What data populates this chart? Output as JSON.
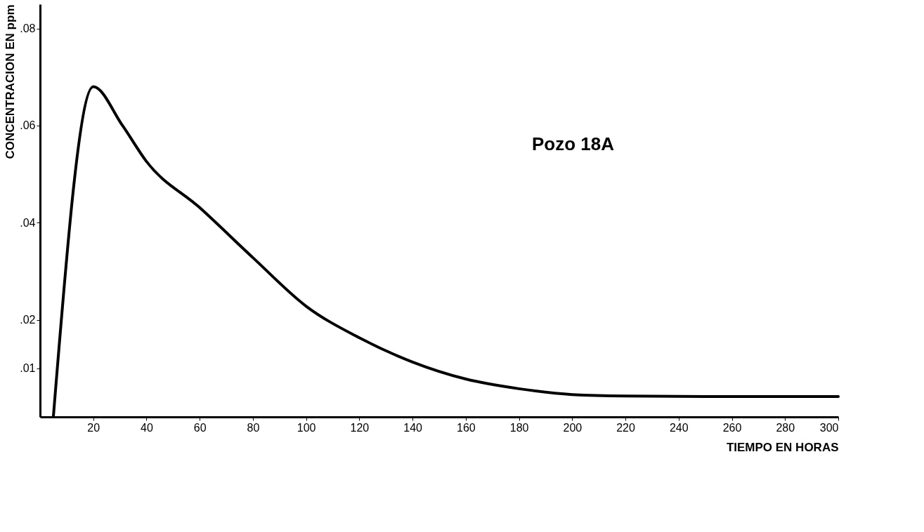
{
  "chart_data": {
    "type": "line",
    "xlabel": "TIEMPO EN HORAS",
    "ylabel": "CONCENTRACION EN ppm",
    "annotations": [
      "Pozo 18A"
    ],
    "x": [
      5,
      20,
      31,
      40,
      60,
      80,
      100,
      120,
      140,
      160,
      180,
      200,
      220,
      260,
      300
    ],
    "series": [
      {
        "color": "#000000",
        "values": [
          0,
          0.068,
          0.06,
          0.0526,
          0.0431,
          0.0328,
          0.0228,
          0.0163,
          0.0113,
          0.0078,
          0.0058,
          0.0046,
          0.0043,
          0.0042,
          0.0042
        ]
      }
    ],
    "xlim": [
      0,
      300
    ],
    "xticks": [
      20,
      40,
      60,
      80,
      100,
      120,
      140,
      160,
      180,
      200,
      220,
      240,
      260,
      280,
      300
    ],
    "ylim": [
      0,
      0.085
    ],
    "yticks": [
      {
        "value": 0.01,
        "label": ".01"
      },
      {
        "value": 0.02,
        "label": ".02"
      },
      {
        "value": 0.04,
        "label": ".04"
      },
      {
        "value": 0.06,
        "label": ".06"
      },
      {
        "value": 0.08,
        "label": ".08"
      }
    ],
    "grid": false,
    "marker": "none",
    "line_style": "solid"
  }
}
